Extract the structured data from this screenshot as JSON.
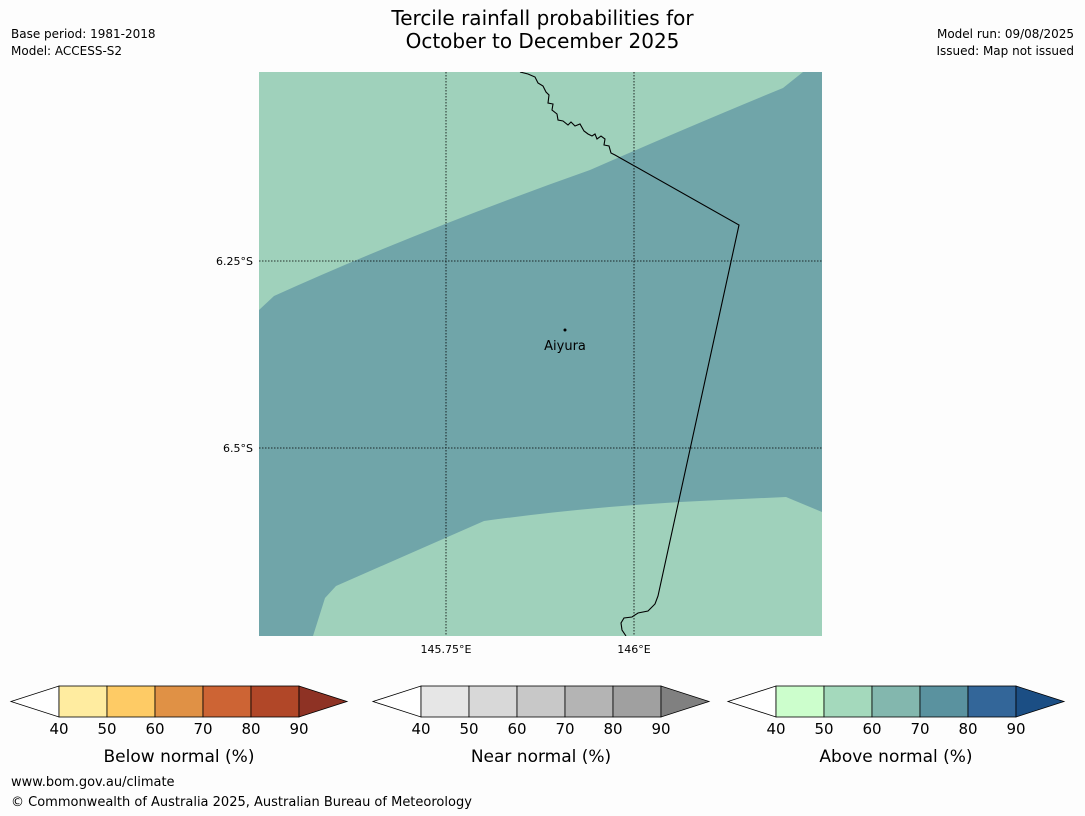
{
  "header": {
    "title_line1": "Tercile rainfall probabilities for",
    "title_line2": "October to December 2025",
    "base_period": "Base period: 1981-2018",
    "model": "Model: ACCESS-S2",
    "model_run": "Model run: 09/08/2025",
    "issued": "Issued: Map not issued"
  },
  "map": {
    "place_label": "Aiyura",
    "lat_ticks": [
      "6.25°S",
      "6.5°S"
    ],
    "lon_ticks": [
      "145.75°E",
      "146°E"
    ],
    "colors": {
      "above_50_60": "#9fd1bb",
      "above_60_70": "#70a5a9",
      "border": "#000000"
    }
  },
  "colorbars": [
    {
      "label": "Below normal (%)",
      "ticks": [
        "40",
        "50",
        "60",
        "70",
        "80",
        "90"
      ],
      "colors": [
        "#ffeca0",
        "#fecb65",
        "#e09145",
        "#cd6434",
        "#b14728"
      ],
      "extend_color": "#8e3224"
    },
    {
      "label": "Near normal (%)",
      "ticks": [
        "40",
        "50",
        "60",
        "70",
        "80",
        "90"
      ],
      "colors": [
        "#e6e6e6",
        "#d8d8d8",
        "#c8c8c8",
        "#b4b4b4",
        "#a0a0a0"
      ],
      "extend_color": "#808080"
    },
    {
      "label": "Above normal (%)",
      "ticks": [
        "40",
        "50",
        "60",
        "70",
        "80",
        "90"
      ],
      "colors": [
        "#ccfecc",
        "#a4d9bc",
        "#83b7ae",
        "#5a929f",
        "#336699"
      ],
      "extend_color": "#1b4e84"
    }
  ],
  "footer": {
    "url": "www.bom.gov.au/climate",
    "copyright": "© Commonwealth of Australia 2025, Australian Bureau of Meteorology"
  }
}
